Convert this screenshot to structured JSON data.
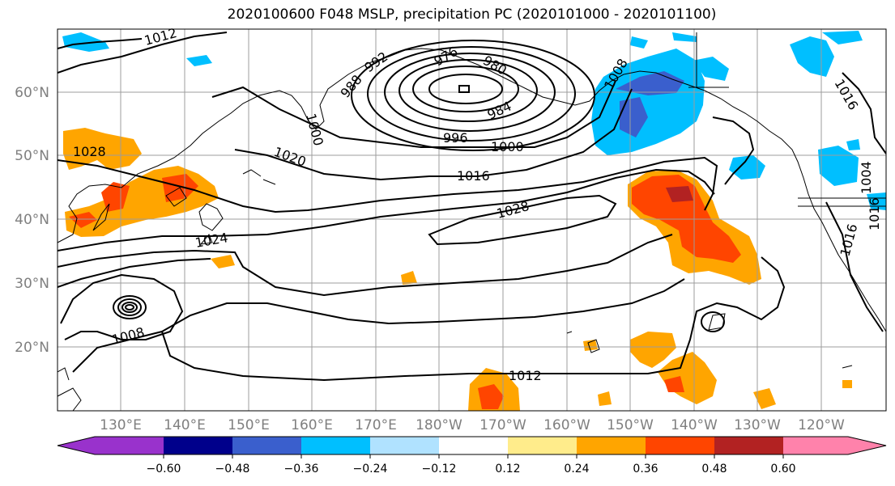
{
  "title": "2020100600 F048 MSLP, precipitation PC (2020101000 - 2020101100)",
  "latitude_labels": [
    "60°N",
    "50°N",
    "40°N",
    "30°N",
    "20°N"
  ],
  "longitude_labels": [
    "130°E",
    "140°E",
    "150°E",
    "160°E",
    "170°E",
    "180°W",
    "170°W",
    "160°W",
    "150°W",
    "140°W",
    "130°W",
    "120°W"
  ],
  "isobar_labels": [
    "1012",
    "992",
    "976",
    "980",
    "984",
    "988",
    "1008",
    "1000",
    "996",
    "1000",
    "1016",
    "1020",
    "1016",
    "1028",
    "1024",
    "1008",
    "1012",
    "1028",
    "1004",
    "1016",
    "1016"
  ],
  "colorbar": {
    "colors": [
      "#9932cc",
      "#00008b",
      "#3a5fcd",
      "#00bfff",
      "#b0e2ff",
      "#ffffff",
      "#ffec8b",
      "#ffa500",
      "#ff4500",
      "#b22222",
      "#ff82ab"
    ],
    "tick_labels": [
      "−0.60",
      "−0.48",
      "−0.36",
      "−0.24",
      "−0.12",
      "0.12",
      "0.24",
      "0.36",
      "0.48",
      "0.60"
    ]
  }
}
